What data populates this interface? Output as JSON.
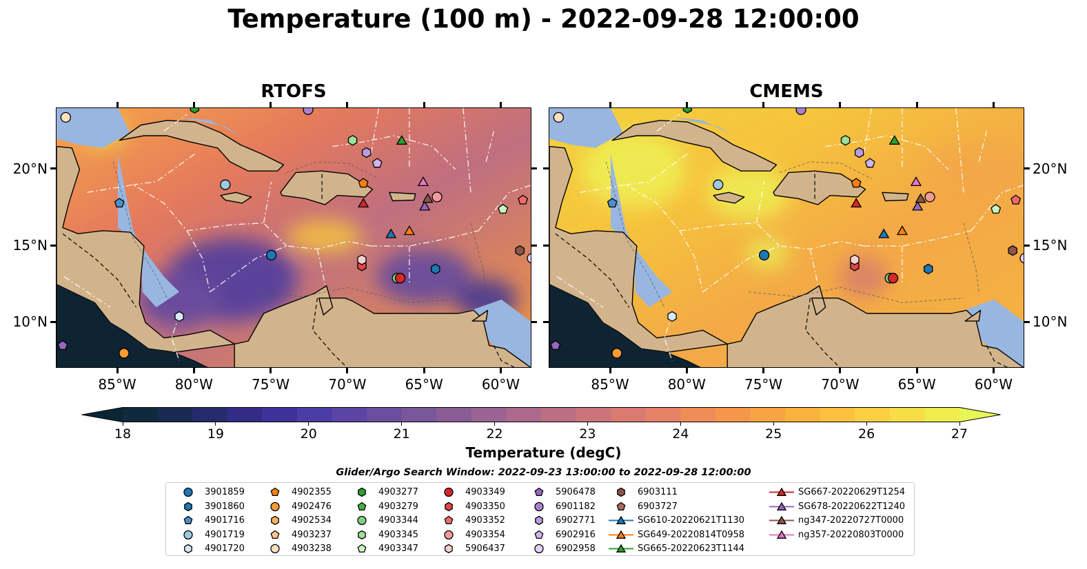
{
  "title": "Temperature (100 m) - 2022-09-28 12:00:00",
  "panels": [
    {
      "title": "RTOFS",
      "scheme": "warm-cool"
    },
    {
      "title": "CMEMS",
      "scheme": "warm"
    }
  ],
  "map_extent": {
    "lon": [
      -89,
      -58
    ],
    "lat": [
      7,
      24
    ]
  },
  "lon_ticks": [
    {
      "value": -85,
      "label": "85°W"
    },
    {
      "value": -80,
      "label": "80°W"
    },
    {
      "value": -75,
      "label": "75°W"
    },
    {
      "value": -70,
      "label": "70°W"
    },
    {
      "value": -65,
      "label": "65°W"
    },
    {
      "value": -60,
      "label": "60°W"
    }
  ],
  "lat_ticks": [
    {
      "value": 20,
      "label": "20°N"
    },
    {
      "value": 15,
      "label": "15°N"
    },
    {
      "value": 10,
      "label": "10°N"
    }
  ],
  "colorbar": {
    "title": "Temperature (degC)",
    "min": 18,
    "max": 27,
    "ticks": [
      "18",
      "19",
      "20",
      "21",
      "22",
      "23",
      "24",
      "25",
      "26",
      "27"
    ],
    "colors": [
      "#0b2535",
      "#0f2a3d",
      "#1a2b52",
      "#262c6b",
      "#332d86",
      "#3f329b",
      "#4c3ca5",
      "#5c45a4",
      "#6b4ea0",
      "#7a569b",
      "#8a5d97",
      "#9a6391",
      "#ab6a8b",
      "#bb6f83",
      "#cb757b",
      "#d97b71",
      "#e58366",
      "#ef8c58",
      "#f5974b",
      "#f8a443",
      "#fab23f",
      "#fbc03e",
      "#fbcf41",
      "#f7dd46",
      "#f0eb4e",
      "#e8f657"
    ]
  },
  "colors": {
    "land": "#d2b48c",
    "shelf": "#99b6e0",
    "deep_land": "#0e2433"
  },
  "legend": {
    "title": "Glider/Argo Search Window: 2022-09-23 13:00:00 to 2022-09-28 12:00:00",
    "columns": [
      [
        {
          "id": "3901859",
          "marker": "circle",
          "color": "#1f77b4"
        },
        {
          "id": "3901860",
          "marker": "hexagon",
          "color": "#1f77b4"
        },
        {
          "id": "4901716",
          "marker": "pentagon",
          "color": "#4a90c8"
        },
        {
          "id": "4901719",
          "marker": "circle",
          "color": "#9ecae1"
        },
        {
          "id": "4901720",
          "marker": "hexagon",
          "color": "#d6eaf8"
        }
      ],
      [
        {
          "id": "4902355",
          "marker": "pentagon",
          "color": "#ff7f0e"
        },
        {
          "id": "4902476",
          "marker": "circle",
          "color": "#ff9933"
        },
        {
          "id": "4902534",
          "marker": "hexagon",
          "color": "#ffb266"
        },
        {
          "id": "4903237",
          "marker": "pentagon",
          "color": "#ffc490"
        },
        {
          "id": "4903238",
          "marker": "circle",
          "color": "#ffe0c0"
        }
      ],
      [
        {
          "id": "4903277",
          "marker": "hexagon",
          "color": "#2ca02c"
        },
        {
          "id": "4903279",
          "marker": "pentagon",
          "color": "#45b045"
        },
        {
          "id": "4903344",
          "marker": "circle",
          "color": "#7fd07f"
        },
        {
          "id": "4903345",
          "marker": "hexagon",
          "color": "#9be09b"
        },
        {
          "id": "4903347",
          "marker": "pentagon",
          "color": "#c8f5c0"
        }
      ],
      [
        {
          "id": "4903349",
          "marker": "circle",
          "color": "#d62728"
        },
        {
          "id": "4903350",
          "marker": "hexagon",
          "color": "#e04545"
        },
        {
          "id": "4903352",
          "marker": "pentagon",
          "color": "#ef6a6a"
        },
        {
          "id": "4903354",
          "marker": "circle",
          "color": "#f59a9a"
        },
        {
          "id": "5906437",
          "marker": "hexagon",
          "color": "#fccfcf"
        }
      ],
      [
        {
          "id": "5906478",
          "marker": "pentagon",
          "color": "#9467bd"
        },
        {
          "id": "6901182",
          "marker": "circle",
          "color": "#a982cf"
        },
        {
          "id": "6902771",
          "marker": "hexagon",
          "color": "#bb9be0"
        },
        {
          "id": "6902916",
          "marker": "pentagon",
          "color": "#cfb5f0"
        },
        {
          "id": "6902958",
          "marker": "circle",
          "color": "#e4d2fa"
        }
      ],
      [
        {
          "id": "6903111",
          "marker": "hexagon",
          "color": "#8c564b"
        },
        {
          "id": "6903727",
          "marker": "pentagon",
          "color": "#a86a5c"
        },
        {
          "id": "SG610-20220621T1130",
          "marker": "triangle",
          "color": "#1f77b4",
          "line": true
        },
        {
          "id": "SG649-20220814T0958",
          "marker": "triangle",
          "color": "#ff7f0e",
          "line": true
        },
        {
          "id": "SG665-20220623T1144",
          "marker": "triangle",
          "color": "#2ca02c",
          "line": true
        }
      ],
      [
        {
          "id": "SG667-20220629T1254",
          "marker": "triangle",
          "color": "#d62728",
          "line": true
        },
        {
          "id": "SG678-20220622T1240",
          "marker": "triangle",
          "color": "#9467bd",
          "line": true
        },
        {
          "id": "ng347-20220727T0000",
          "marker": "triangle",
          "color": "#8c564b",
          "line": true
        },
        {
          "id": "ng357-20220803T0000",
          "marker": "triangle",
          "color": "#e377c2",
          "line": true
        }
      ]
    ]
  },
  "observations": [
    {
      "id": "3901859",
      "lon": -75.0,
      "lat": 14.4
    },
    {
      "id": "4901716",
      "lon": -84.9,
      "lat": 17.8
    },
    {
      "id": "4901719",
      "lon": -78.0,
      "lat": 19.0
    },
    {
      "id": "4901720",
      "lon": -81.0,
      "lat": 10.4
    },
    {
      "id": "4902355",
      "lon": -69.0,
      "lat": 19.1
    },
    {
      "id": "4902476",
      "lon": -84.6,
      "lat": 8.0
    },
    {
      "id": "4903277",
      "lon": -80.0,
      "lat": 24.0
    },
    {
      "id": "4903344",
      "lon": -66.8,
      "lat": 12.9
    },
    {
      "id": "4903345",
      "lon": -69.7,
      "lat": 21.9
    },
    {
      "id": "4903347",
      "lon": -59.9,
      "lat": 17.4
    },
    {
      "id": "4903349",
      "lon": -66.6,
      "lat": 12.9
    },
    {
      "id": "4903350",
      "lon": -69.1,
      "lat": 13.7
    },
    {
      "id": "4903352",
      "lon": -58.6,
      "lat": 18.0
    },
    {
      "id": "4903354",
      "lon": -64.2,
      "lat": 18.2
    },
    {
      "id": "5906437",
      "lon": -69.1,
      "lat": 14.1
    },
    {
      "id": "5906478",
      "lon": -88.6,
      "lat": 8.5
    },
    {
      "id": "6901182",
      "lon": -72.6,
      "lat": 23.9
    },
    {
      "id": "6902771",
      "lon": -68.8,
      "lat": 21.1
    },
    {
      "id": "6902916",
      "lon": -68.1,
      "lat": 20.4
    },
    {
      "id": "6902958",
      "lon": -58.0,
      "lat": 14.2
    },
    {
      "id": "6903111",
      "lon": -58.8,
      "lat": 14.7
    },
    {
      "id": "3901860",
      "lon": -64.3,
      "lat": 13.5
    },
    {
      "id": "4903238",
      "lon": -88.4,
      "lat": 23.4
    },
    {
      "id": "SG610-20220621T1130",
      "lon": -67.2,
      "lat": 15.8
    },
    {
      "id": "SG649-20220814T0958",
      "lon": -66.0,
      "lat": 16.0
    },
    {
      "id": "SG665-20220623T1144",
      "lon": -66.5,
      "lat": 21.9
    },
    {
      "id": "SG667-20220629T1254",
      "lon": -69.0,
      "lat": 17.8
    },
    {
      "id": "SG678-20220622T1240",
      "lon": -65.0,
      "lat": 17.6
    },
    {
      "id": "ng347-20220727T0000",
      "lon": -64.8,
      "lat": 18.1
    },
    {
      "id": "ng357-20220803T0000",
      "lon": -65.1,
      "lat": 19.2
    }
  ]
}
